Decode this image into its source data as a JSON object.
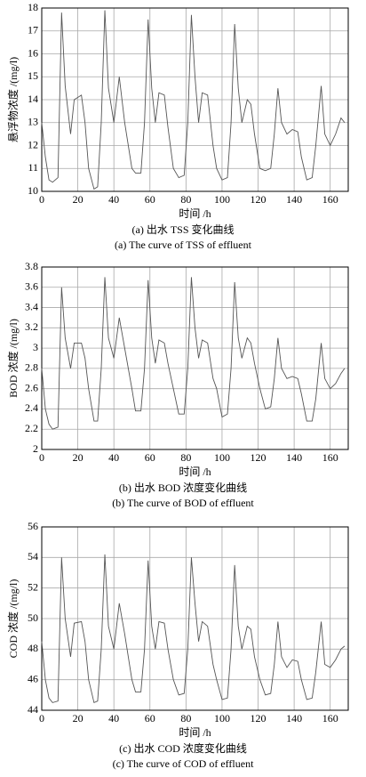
{
  "chart_data": [
    {
      "type": "line",
      "ylabel": "悬浮物浓度 /(mg/l)",
      "xlabel": "时间 /h",
      "caption_cn": "(a) 出水 TSS 变化曲线",
      "caption_en": "(a) The curve of TSS of effluent",
      "color": "#555555",
      "grid": true,
      "xlim": [
        0,
        170
      ],
      "xticks": [
        0,
        20,
        40,
        60,
        80,
        100,
        120,
        140,
        160
      ],
      "ylim": [
        10,
        18
      ],
      "yticks": [
        10,
        11,
        12,
        13,
        14,
        15,
        16,
        17,
        18
      ],
      "x": [
        0,
        2,
        4,
        6,
        9,
        11,
        13,
        16,
        18,
        22,
        24,
        26,
        29,
        31,
        33,
        35,
        37,
        40,
        43,
        46,
        50,
        52,
        55,
        57,
        59,
        61,
        63,
        65,
        68,
        70,
        73,
        76,
        79,
        81,
        83,
        85,
        87,
        89,
        92,
        95,
        97,
        100,
        103,
        105,
        107,
        109,
        111,
        114,
        116,
        118,
        121,
        124,
        127,
        129,
        131,
        133,
        136,
        139,
        142,
        144,
        147,
        150,
        152,
        155,
        157,
        160,
        163,
        166,
        168
      ],
      "values": [
        13,
        11.5,
        10.5,
        10.4,
        10.6,
        17.8,
        14.6,
        12.5,
        14,
        14.2,
        13,
        11,
        10.1,
        10.2,
        13,
        17.9,
        14.5,
        13,
        15,
        13,
        11,
        10.8,
        10.8,
        13,
        17.5,
        14.5,
        13,
        14.3,
        14.2,
        12.8,
        11,
        10.6,
        10.7,
        13,
        17.7,
        15,
        13,
        14.3,
        14.2,
        12,
        11,
        10.5,
        10.6,
        13,
        17.3,
        14.5,
        13,
        14,
        13.8,
        12.5,
        11,
        10.9,
        11,
        12.5,
        14.5,
        13,
        12.5,
        12.7,
        12.6,
        11.5,
        10.5,
        10.6,
        12,
        14.6,
        12.5,
        12,
        12.5,
        13.2,
        13
      ]
    },
    {
      "type": "line",
      "ylabel": "BOD 浓度 /(mg/l)",
      "xlabel": "时间 /h",
      "caption_cn": "(b) 出水 BOD 浓度变化曲线",
      "caption_en": "(b) The curve of BOD of effluent",
      "color": "#555555",
      "grid": true,
      "xlim": [
        0,
        170
      ],
      "xticks": [
        0,
        20,
        40,
        60,
        80,
        100,
        120,
        140,
        160
      ],
      "ylim": [
        2,
        3.8
      ],
      "yticks": [
        2,
        2.2,
        2.4,
        2.6,
        2.8,
        3,
        3.2,
        3.4,
        3.6,
        3.8
      ],
      "x": [
        0,
        2,
        4,
        6,
        9,
        11,
        13,
        16,
        18,
        22,
        24,
        26,
        29,
        31,
        33,
        35,
        37,
        40,
        43,
        46,
        50,
        52,
        55,
        57,
        59,
        61,
        63,
        65,
        68,
        70,
        73,
        76,
        79,
        81,
        83,
        85,
        87,
        89,
        92,
        95,
        97,
        100,
        103,
        105,
        107,
        109,
        111,
        114,
        116,
        118,
        121,
        124,
        127,
        129,
        131,
        133,
        136,
        139,
        142,
        144,
        147,
        150,
        152,
        155,
        157,
        160,
        163,
        166,
        168
      ],
      "values": [
        2.8,
        2.4,
        2.25,
        2.2,
        2.22,
        3.6,
        3.1,
        2.8,
        3.05,
        3.05,
        2.9,
        2.6,
        2.28,
        2.28,
        2.8,
        3.7,
        3.1,
        2.9,
        3.3,
        3,
        2.6,
        2.38,
        2.38,
        2.8,
        3.67,
        3.1,
        2.85,
        3.08,
        3.05,
        2.85,
        2.6,
        2.35,
        2.35,
        2.8,
        3.7,
        3.2,
        2.9,
        3.08,
        3.05,
        2.7,
        2.6,
        2.32,
        2.35,
        2.8,
        3.65,
        3.1,
        2.9,
        3.1,
        3.05,
        2.85,
        2.6,
        2.4,
        2.42,
        2.7,
        3.1,
        2.8,
        2.7,
        2.72,
        2.7,
        2.55,
        2.28,
        2.28,
        2.5,
        3.05,
        2.7,
        2.6,
        2.65,
        2.75,
        2.8
      ]
    },
    {
      "type": "line",
      "ylabel": "COD 浓度 /(mg/l)",
      "xlabel": "时间 /h",
      "caption_cn": "(c) 出水 COD 浓度变化曲线",
      "caption_en": "(c) The curve of COD of effluent",
      "color": "#555555",
      "grid": true,
      "xlim": [
        0,
        170
      ],
      "xticks": [
        0,
        20,
        40,
        60,
        80,
        100,
        120,
        140,
        160
      ],
      "ylim": [
        44,
        56
      ],
      "yticks": [
        44,
        46,
        48,
        50,
        52,
        54,
        56
      ],
      "x": [
        0,
        2,
        4,
        6,
        9,
        11,
        13,
        16,
        18,
        22,
        24,
        26,
        29,
        31,
        33,
        35,
        37,
        40,
        43,
        46,
        50,
        52,
        55,
        57,
        59,
        61,
        63,
        65,
        68,
        70,
        73,
        76,
        79,
        81,
        83,
        85,
        87,
        89,
        92,
        95,
        97,
        100,
        103,
        105,
        107,
        109,
        111,
        114,
        116,
        118,
        121,
        124,
        127,
        129,
        131,
        133,
        136,
        139,
        142,
        144,
        147,
        150,
        152,
        155,
        157,
        160,
        163,
        166,
        168
      ],
      "values": [
        48.5,
        46,
        44.8,
        44.5,
        44.6,
        54,
        50,
        47.5,
        49.7,
        49.8,
        48.5,
        46,
        44.5,
        44.6,
        48,
        54.2,
        49.5,
        48,
        51,
        49,
        46,
        45.2,
        45.2,
        48,
        53.8,
        49.5,
        48,
        49.8,
        49.7,
        48,
        46,
        45,
        45.1,
        48,
        54,
        51,
        48.5,
        49.8,
        49.5,
        47,
        46,
        44.7,
        44.8,
        48,
        53.5,
        49.5,
        48,
        49.5,
        49.3,
        47.5,
        46,
        45,
        45.1,
        47,
        49.8,
        47.5,
        46.8,
        47.3,
        47.2,
        46,
        44.7,
        44.8,
        46.5,
        49.8,
        47,
        46.8,
        47.3,
        48,
        48.2
      ]
    }
  ]
}
